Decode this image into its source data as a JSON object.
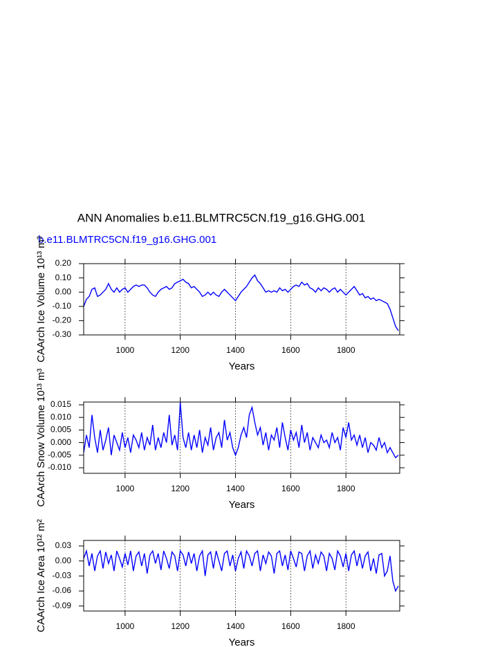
{
  "chart_data": [
    {
      "type": "line",
      "title": "ANN Anomalies b.e11.BLMTRC5CN.f19_g16.GHG.001",
      "subtitle": "b.e11.BLMTRC5CN.f19_g16.GHG.001",
      "xlabel": "Years",
      "ylabel": "CAArch Ice Volume 10¹³ m³",
      "xlim": [
        850,
        1995
      ],
      "xticks": [
        1000,
        1200,
        1400,
        1600,
        1800
      ],
      "ylim": [
        -0.3,
        0.2
      ],
      "yticks": [
        {
          "value": 0.2,
          "label": "0.20"
        },
        {
          "value": 0.1,
          "label": "0.10"
        },
        {
          "value": 0,
          "label": "0.00"
        },
        {
          "value": -0.1,
          "label": "-0.10"
        },
        {
          "value": -0.2,
          "label": "-0.20"
        },
        {
          "value": -0.3,
          "label": "-0.30"
        }
      ],
      "grid": true,
      "color": "#0000ff",
      "x": [
        850,
        860,
        870,
        880,
        890,
        900,
        910,
        920,
        930,
        940,
        950,
        960,
        970,
        980,
        990,
        1000,
        1010,
        1020,
        1030,
        1040,
        1050,
        1060,
        1070,
        1080,
        1090,
        1100,
        1110,
        1120,
        1130,
        1140,
        1150,
        1160,
        1170,
        1180,
        1190,
        1200,
        1210,
        1220,
        1230,
        1240,
        1250,
        1260,
        1270,
        1280,
        1290,
        1300,
        1310,
        1320,
        1330,
        1340,
        1350,
        1360,
        1370,
        1380,
        1390,
        1400,
        1410,
        1420,
        1430,
        1440,
        1450,
        1460,
        1470,
        1480,
        1490,
        1500,
        1510,
        1520,
        1530,
        1540,
        1550,
        1560,
        1570,
        1580,
        1590,
        1600,
        1610,
        1620,
        1630,
        1640,
        1650,
        1660,
        1670,
        1680,
        1690,
        1700,
        1710,
        1720,
        1730,
        1740,
        1750,
        1760,
        1770,
        1780,
        1790,
        1800,
        1810,
        1820,
        1830,
        1840,
        1850,
        1860,
        1870,
        1880,
        1890,
        1900,
        1910,
        1920,
        1930,
        1940,
        1950,
        1960,
        1970,
        1980,
        1990
      ],
      "values": [
        -0.1,
        -0.05,
        -0.03,
        0.02,
        0.03,
        -0.03,
        -0.02,
        0,
        0.02,
        0.06,
        0.02,
        0,
        0.03,
        0,
        0.02,
        0.03,
        0,
        0.02,
        0.04,
        0.05,
        0.04,
        0.05,
        0.05,
        0.03,
        0,
        -0.02,
        -0.03,
        0,
        0.02,
        0.03,
        0.04,
        0.02,
        0.03,
        0.06,
        0.07,
        0.08,
        0.09,
        0.07,
        0.06,
        0.03,
        0.04,
        0.02,
        0,
        -0.03,
        -0.02,
        0,
        -0.02,
        0,
        -0.02,
        -0.03,
        0,
        0.02,
        0,
        -0.02,
        -0.04,
        -0.06,
        -0.03,
        0,
        0.02,
        0.04,
        0.07,
        0.1,
        0.12,
        0.08,
        0.06,
        0.03,
        0,
        0.01,
        0,
        0.01,
        0,
        0.03,
        0.01,
        0.02,
        0,
        0.02,
        0.04,
        0.05,
        0.04,
        0.07,
        0.05,
        0.06,
        0.03,
        0.02,
        0,
        0.03,
        0.01,
        0.03,
        0.02,
        0,
        0.02,
        0.03,
        0,
        0.02,
        0,
        -0.02,
        0,
        0.02,
        0.04,
        0.01,
        -0.02,
        -0.01,
        -0.04,
        -0.03,
        -0.05,
        -0.04,
        -0.06,
        -0.05,
        -0.06,
        -0.07,
        -0.08,
        -0.12,
        -0.18,
        -0.24,
        -0.27
      ]
    },
    {
      "type": "line",
      "xlabel": "Years",
      "ylabel": "CAArch Snow Volume 10¹³ m³",
      "xlim": [
        850,
        1995
      ],
      "xticks": [
        1000,
        1200,
        1400,
        1600,
        1800
      ],
      "ylim": [
        -0.0122,
        0.0161
      ],
      "yticks": [
        0.015,
        {
          "value": 0.01,
          "label": "0.010"
        },
        0.005,
        {
          "value": 0,
          "label": "0.000"
        },
        -0.005,
        {
          "value": -0.01,
          "label": "-0.010"
        }
      ],
      "grid": true,
      "color": "#0000ff",
      "x": [
        850,
        860,
        870,
        880,
        890,
        900,
        910,
        920,
        930,
        940,
        950,
        960,
        970,
        980,
        990,
        1000,
        1010,
        1020,
        1030,
        1040,
        1050,
        1060,
        1070,
        1080,
        1090,
        1100,
        1110,
        1120,
        1130,
        1140,
        1150,
        1160,
        1170,
        1180,
        1190,
        1200,
        1210,
        1220,
        1230,
        1240,
        1250,
        1260,
        1270,
        1280,
        1290,
        1300,
        1310,
        1320,
        1330,
        1340,
        1350,
        1360,
        1370,
        1380,
        1390,
        1400,
        1410,
        1420,
        1430,
        1440,
        1450,
        1460,
        1470,
        1480,
        1490,
        1500,
        1510,
        1520,
        1530,
        1540,
        1550,
        1560,
        1570,
        1580,
        1590,
        1600,
        1610,
        1620,
        1630,
        1640,
        1650,
        1660,
        1670,
        1680,
        1690,
        1700,
        1710,
        1720,
        1730,
        1740,
        1750,
        1760,
        1770,
        1780,
        1790,
        1800,
        1810,
        1820,
        1830,
        1840,
        1850,
        1860,
        1870,
        1880,
        1890,
        1900,
        1910,
        1920,
        1930,
        1940,
        1950,
        1960,
        1970,
        1980,
        1990
      ],
      "values": [
        -0.004,
        0.003,
        -0.002,
        0.011,
        0.002,
        -0.004,
        0.005,
        -0.003,
        0.001,
        0.006,
        -0.005,
        0.003,
        0,
        -0.003,
        0.004,
        -0.002,
        0.002,
        -0.004,
        0.003,
        0.001,
        -0.002,
        0.004,
        -0.003,
        0.002,
        -0.001,
        0.007,
        -0.003,
        0.002,
        -0.002,
        0.004,
        0,
        0.011,
        -0.001,
        0.003,
        -0.003,
        0.016,
        0.002,
        -0.002,
        0.004,
        -0.003,
        0.003,
        -0.002,
        0.005,
        -0.004,
        0.002,
        -0.001,
        0.006,
        -0.003,
        0.002,
        0.004,
        -0.002,
        0.009,
        0.001,
        0.004,
        -0.002,
        -0.005,
        -0.002,
        0.003,
        0.006,
        0.002,
        0.011,
        0.014,
        0.008,
        0.003,
        0.006,
        -0.001,
        0.004,
        -0.003,
        0.003,
        0.001,
        0.006,
        -0.002,
        0.008,
        0.002,
        -0.003,
        0.005,
        0.001,
        0.004,
        -0.002,
        0.007,
        0,
        0.004,
        -0.003,
        0.002,
        0,
        -0.002,
        0.003,
        0,
        0.001,
        -0.002,
        0.004,
        0,
        0.002,
        -0.003,
        0.006,
        0.002,
        0.008,
        0.001,
        0.003,
        -0.001,
        0.003,
        -0.002,
        0.002,
        -0.004,
        0,
        -0.001,
        -0.003,
        0.002,
        -0.002,
        0,
        -0.004,
        -0.002,
        -0.004,
        -0.006,
        -0.005
      ]
    },
    {
      "type": "line",
      "xlabel": "Years",
      "ylabel": "CAArch Ice Area 10¹² m²",
      "xlim": [
        850,
        1995
      ],
      "xticks": [
        1000,
        1200,
        1400,
        1600,
        1800
      ],
      "ylim": [
        -0.1,
        0.041
      ],
      "yticks": [
        0.03,
        {
          "value": 0,
          "label": "0.00"
        },
        -0.03,
        -0.06,
        -0.09
      ],
      "grid": true,
      "color": "#0000ff",
      "x": [
        850,
        860,
        870,
        880,
        890,
        900,
        910,
        920,
        930,
        940,
        950,
        960,
        970,
        980,
        990,
        1000,
        1010,
        1020,
        1030,
        1040,
        1050,
        1060,
        1070,
        1080,
        1090,
        1100,
        1110,
        1120,
        1130,
        1140,
        1150,
        1160,
        1170,
        1180,
        1190,
        1200,
        1210,
        1220,
        1230,
        1240,
        1250,
        1260,
        1270,
        1280,
        1290,
        1300,
        1310,
        1320,
        1330,
        1340,
        1350,
        1360,
        1370,
        1380,
        1390,
        1400,
        1410,
        1420,
        1430,
        1440,
        1450,
        1460,
        1470,
        1480,
        1490,
        1500,
        1510,
        1520,
        1530,
        1540,
        1550,
        1560,
        1570,
        1580,
        1590,
        1600,
        1610,
        1620,
        1630,
        1640,
        1650,
        1660,
        1670,
        1680,
        1690,
        1700,
        1710,
        1720,
        1730,
        1740,
        1750,
        1760,
        1770,
        1780,
        1790,
        1800,
        1810,
        1820,
        1830,
        1840,
        1850,
        1860,
        1870,
        1880,
        1890,
        1900,
        1910,
        1920,
        1930,
        1940,
        1950,
        1960,
        1970,
        1980,
        1990
      ],
      "values": [
        0.005,
        0.02,
        -0.01,
        0.015,
        -0.02,
        0.01,
        0.02,
        -0.015,
        0.018,
        -0.005,
        0.012,
        -0.02,
        0.02,
        0.005,
        -0.012,
        0.015,
        -0.008,
        0.02,
        -0.02,
        0.01,
        0.018,
        -0.01,
        0.015,
        -0.025,
        0.012,
        0.02,
        -0.005,
        0.015,
        -0.018,
        0.02,
        0.005,
        -0.015,
        0.018,
        0.01,
        -0.02,
        0.02,
        0.012,
        -0.01,
        0.018,
        -0.005,
        0.015,
        -0.02,
        0.01,
        0.02,
        -0.03,
        0.012,
        0.018,
        -0.015,
        0.02,
        0,
        -0.02,
        0.015,
        0.02,
        -0.01,
        0.012,
        -0.02,
        0.005,
        0.018,
        -0.015,
        0.02,
        0.01,
        -0.01,
        0.015,
        0.02,
        -0.02,
        0.012,
        -0.005,
        0.018,
        0.01,
        -0.025,
        0.015,
        0.02,
        -0.01,
        0.012,
        -0.018,
        0.02,
        0.005,
        -0.012,
        0.018,
        0.015,
        -0.02,
        0.01,
        0.02,
        -0.015,
        0.012,
        -0.005,
        0.018,
        0.01,
        -0.02,
        0.015,
        0.005,
        -0.018,
        0.02,
        0.01,
        -0.012,
        0.015,
        -0.02,
        0.012,
        0.02,
        -0.01,
        0.015,
        -0.015,
        0.01,
        0.018,
        -0.02,
        0.005,
        -0.025,
        0.012,
        0.015,
        -0.03,
        -0.02,
        0.01,
        -0.04,
        -0.06,
        -0.05
      ]
    }
  ]
}
